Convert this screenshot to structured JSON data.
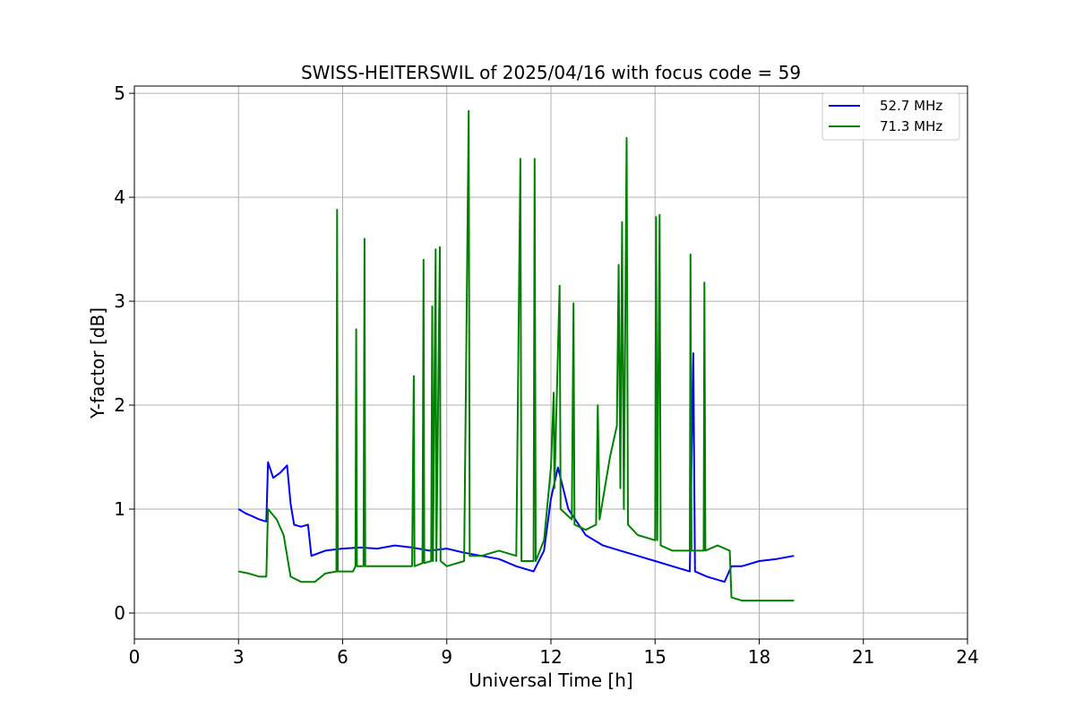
{
  "chart_data": {
    "type": "line",
    "title": "SWISS-HEITERSWIL of 2025/04/16 with focus code = 59",
    "xlabel": "Universal Time [h]",
    "ylabel": "Y-factor [dB]",
    "xlim": [
      0,
      24
    ],
    "ylim": [
      -0.25,
      5.07
    ],
    "xticks": [
      0,
      3,
      6,
      9,
      12,
      15,
      18,
      21,
      24
    ],
    "yticks": [
      0,
      1,
      2,
      3,
      4,
      5
    ],
    "xtick_labels": [
      "0",
      "3",
      "6",
      "9",
      "12",
      "15",
      "18",
      "21",
      "24"
    ],
    "ytick_labels": [
      "0",
      "1",
      "2",
      "3",
      "4",
      "5"
    ],
    "grid": true,
    "legend_position": "top-right",
    "series": [
      {
        "name": "52.7 MHz",
        "color": "#0000ff",
        "points": [
          [
            3.0,
            1.0
          ],
          [
            3.2,
            0.96
          ],
          [
            3.4,
            0.93
          ],
          [
            3.6,
            0.9
          ],
          [
            3.8,
            0.88
          ],
          [
            3.85,
            1.45
          ],
          [
            4.0,
            1.3
          ],
          [
            4.2,
            1.35
          ],
          [
            4.4,
            1.42
          ],
          [
            4.5,
            1.05
          ],
          [
            4.6,
            0.85
          ],
          [
            4.8,
            0.83
          ],
          [
            5.0,
            0.85
          ],
          [
            5.1,
            0.55
          ],
          [
            5.5,
            0.6
          ],
          [
            6.0,
            0.62
          ],
          [
            6.5,
            0.63
          ],
          [
            7.0,
            0.62
          ],
          [
            7.5,
            0.65
          ],
          [
            8.0,
            0.63
          ],
          [
            8.5,
            0.6
          ],
          [
            9.0,
            0.62
          ],
          [
            9.5,
            0.58
          ],
          [
            10.0,
            0.55
          ],
          [
            10.5,
            0.52
          ],
          [
            11.0,
            0.45
          ],
          [
            11.5,
            0.4
          ],
          [
            11.8,
            0.6
          ],
          [
            12.0,
            1.1
          ],
          [
            12.2,
            1.4
          ],
          [
            12.5,
            1.0
          ],
          [
            13.0,
            0.75
          ],
          [
            13.5,
            0.65
          ],
          [
            14.0,
            0.6
          ],
          [
            14.5,
            0.55
          ],
          [
            15.0,
            0.5
          ],
          [
            15.5,
            0.45
          ],
          [
            16.0,
            0.4
          ],
          [
            16.1,
            2.5
          ],
          [
            16.15,
            0.4
          ],
          [
            16.5,
            0.35
          ],
          [
            17.0,
            0.3
          ],
          [
            17.2,
            0.45
          ],
          [
            17.5,
            0.45
          ],
          [
            18.0,
            0.5
          ],
          [
            18.5,
            0.52
          ],
          [
            19.0,
            0.55
          ]
        ]
      },
      {
        "name": "71.3 MHz",
        "color": "#008000",
        "points": [
          [
            3.0,
            0.4
          ],
          [
            3.3,
            0.38
          ],
          [
            3.6,
            0.35
          ],
          [
            3.8,
            0.35
          ],
          [
            3.85,
            1.0
          ],
          [
            4.1,
            0.9
          ],
          [
            4.3,
            0.75
          ],
          [
            4.5,
            0.35
          ],
          [
            4.8,
            0.3
          ],
          [
            5.2,
            0.3
          ],
          [
            5.5,
            0.38
          ],
          [
            5.82,
            0.4
          ],
          [
            5.84,
            3.88
          ],
          [
            5.86,
            0.4
          ],
          [
            6.3,
            0.4
          ],
          [
            6.37,
            0.45
          ],
          [
            6.39,
            2.73
          ],
          [
            6.41,
            0.45
          ],
          [
            6.6,
            0.45
          ],
          [
            6.63,
            3.6
          ],
          [
            6.65,
            0.45
          ],
          [
            7.0,
            0.45
          ],
          [
            7.5,
            0.45
          ],
          [
            8.0,
            0.45
          ],
          [
            8.05,
            2.28
          ],
          [
            8.07,
            0.45
          ],
          [
            8.3,
            0.48
          ],
          [
            8.33,
            3.4
          ],
          [
            8.35,
            0.48
          ],
          [
            8.55,
            0.5
          ],
          [
            8.58,
            2.95
          ],
          [
            8.6,
            0.5
          ],
          [
            8.68,
            3.5
          ],
          [
            8.7,
            0.5
          ],
          [
            8.8,
            3.52
          ],
          [
            8.82,
            0.5
          ],
          [
            9.0,
            0.45
          ],
          [
            9.5,
            0.5
          ],
          [
            9.63,
            4.83
          ],
          [
            9.66,
            0.55
          ],
          [
            10.0,
            0.55
          ],
          [
            10.5,
            0.6
          ],
          [
            11.0,
            0.55
          ],
          [
            11.12,
            4.37
          ],
          [
            11.15,
            0.5
          ],
          [
            11.5,
            0.5
          ],
          [
            11.53,
            4.37
          ],
          [
            11.56,
            0.5
          ],
          [
            11.8,
            0.7
          ],
          [
            12.0,
            1.4
          ],
          [
            12.08,
            2.12
          ],
          [
            12.1,
            1.2
          ],
          [
            12.25,
            3.15
          ],
          [
            12.28,
            1.0
          ],
          [
            12.6,
            0.9
          ],
          [
            12.65,
            2.98
          ],
          [
            12.68,
            0.85
          ],
          [
            13.0,
            0.8
          ],
          [
            13.3,
            0.85
          ],
          [
            13.35,
            2.0
          ],
          [
            13.4,
            0.9
          ],
          [
            13.7,
            1.5
          ],
          [
            13.9,
            1.8
          ],
          [
            13.95,
            3.35
          ],
          [
            14.0,
            1.2
          ],
          [
            14.05,
            3.76
          ],
          [
            14.1,
            1.0
          ],
          [
            14.18,
            4.57
          ],
          [
            14.22,
            0.85
          ],
          [
            14.5,
            0.75
          ],
          [
            15.0,
            0.7
          ],
          [
            15.03,
            3.81
          ],
          [
            15.06,
            0.7
          ],
          [
            15.13,
            3.83
          ],
          [
            15.16,
            0.65
          ],
          [
            15.5,
            0.6
          ],
          [
            16.0,
            0.6
          ],
          [
            16.02,
            3.45
          ],
          [
            16.05,
            0.6
          ],
          [
            16.4,
            0.6
          ],
          [
            16.42,
            3.18
          ],
          [
            16.45,
            0.6
          ],
          [
            16.8,
            0.65
          ],
          [
            17.15,
            0.6
          ],
          [
            17.2,
            0.15
          ],
          [
            17.5,
            0.12
          ],
          [
            18.0,
            0.12
          ],
          [
            18.5,
            0.12
          ],
          [
            19.0,
            0.12
          ]
        ]
      }
    ]
  }
}
